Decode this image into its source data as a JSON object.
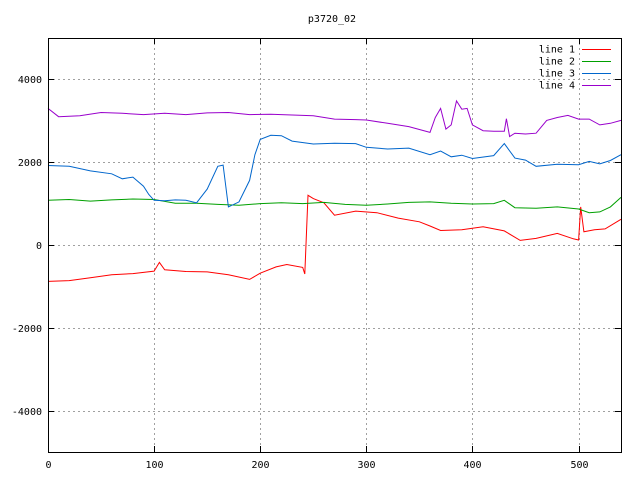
{
  "chart_data": {
    "type": "line",
    "title": "p3720_02",
    "xlabel": "",
    "ylabel": "",
    "xlim": [
      0,
      540
    ],
    "ylim": [
      -5000,
      5000
    ],
    "xticks": [
      0,
      100,
      200,
      300,
      400,
      500
    ],
    "yticks": [
      -4000,
      -2000,
      0,
      2000,
      4000
    ],
    "grid": true,
    "legend_position": "top-right",
    "series": [
      {
        "name": "line 1",
        "color": "#ff0000",
        "points": [
          [
            0,
            -880
          ],
          [
            20,
            -860
          ],
          [
            40,
            -790
          ],
          [
            60,
            -720
          ],
          [
            80,
            -690
          ],
          [
            100,
            -630
          ],
          [
            105,
            -420
          ],
          [
            110,
            -600
          ],
          [
            130,
            -640
          ],
          [
            150,
            -650
          ],
          [
            170,
            -720
          ],
          [
            190,
            -830
          ],
          [
            200,
            -680
          ],
          [
            215,
            -530
          ],
          [
            225,
            -470
          ],
          [
            240,
            -540
          ],
          [
            242,
            -700
          ],
          [
            245,
            1200
          ],
          [
            250,
            1120
          ],
          [
            260,
            1020
          ],
          [
            270,
            720
          ],
          [
            290,
            820
          ],
          [
            310,
            780
          ],
          [
            330,
            650
          ],
          [
            350,
            560
          ],
          [
            360,
            460
          ],
          [
            370,
            350
          ],
          [
            390,
            370
          ],
          [
            410,
            440
          ],
          [
            430,
            340
          ],
          [
            445,
            110
          ],
          [
            460,
            160
          ],
          [
            480,
            280
          ],
          [
            495,
            150
          ],
          [
            500,
            120
          ],
          [
            502,
            920
          ],
          [
            505,
            320
          ],
          [
            515,
            370
          ],
          [
            525,
            390
          ],
          [
            540,
            620
          ]
        ]
      },
      {
        "name": "line 2",
        "color": "#00a000",
        "points": [
          [
            0,
            1080
          ],
          [
            20,
            1100
          ],
          [
            40,
            1060
          ],
          [
            60,
            1090
          ],
          [
            80,
            1110
          ],
          [
            100,
            1100
          ],
          [
            120,
            1010
          ],
          [
            140,
            1010
          ],
          [
            160,
            980
          ],
          [
            180,
            960
          ],
          [
            200,
            1000
          ],
          [
            220,
            1020
          ],
          [
            240,
            1000
          ],
          [
            260,
            1030
          ],
          [
            280,
            980
          ],
          [
            300,
            960
          ],
          [
            320,
            990
          ],
          [
            340,
            1030
          ],
          [
            360,
            1040
          ],
          [
            380,
            1010
          ],
          [
            400,
            990
          ],
          [
            420,
            1000
          ],
          [
            430,
            1080
          ],
          [
            440,
            900
          ],
          [
            460,
            890
          ],
          [
            480,
            920
          ],
          [
            500,
            870
          ],
          [
            510,
            780
          ],
          [
            520,
            800
          ],
          [
            530,
            920
          ],
          [
            540,
            1150
          ]
        ]
      },
      {
        "name": "line 3",
        "color": "#0066cc",
        "points": [
          [
            0,
            1920
          ],
          [
            20,
            1900
          ],
          [
            40,
            1790
          ],
          [
            60,
            1720
          ],
          [
            70,
            1600
          ],
          [
            80,
            1640
          ],
          [
            90,
            1420
          ],
          [
            95,
            1220
          ],
          [
            100,
            1080
          ],
          [
            110,
            1070
          ],
          [
            120,
            1090
          ],
          [
            130,
            1080
          ],
          [
            140,
            1020
          ],
          [
            150,
            1350
          ],
          [
            160,
            1900
          ],
          [
            165,
            1930
          ],
          [
            170,
            920
          ],
          [
            180,
            1040
          ],
          [
            190,
            1560
          ],
          [
            195,
            2180
          ],
          [
            200,
            2550
          ],
          [
            210,
            2650
          ],
          [
            220,
            2640
          ],
          [
            230,
            2510
          ],
          [
            250,
            2440
          ],
          [
            270,
            2460
          ],
          [
            290,
            2450
          ],
          [
            300,
            2360
          ],
          [
            320,
            2320
          ],
          [
            340,
            2340
          ],
          [
            360,
            2180
          ],
          [
            370,
            2270
          ],
          [
            380,
            2130
          ],
          [
            390,
            2170
          ],
          [
            400,
            2090
          ],
          [
            420,
            2160
          ],
          [
            430,
            2450
          ],
          [
            440,
            2100
          ],
          [
            450,
            2050
          ],
          [
            460,
            1900
          ],
          [
            480,
            1950
          ],
          [
            500,
            1940
          ],
          [
            510,
            2020
          ],
          [
            520,
            1960
          ],
          [
            530,
            2040
          ],
          [
            540,
            2180
          ]
        ]
      },
      {
        "name": "line 4",
        "color": "#9900cc",
        "points": [
          [
            0,
            3300
          ],
          [
            10,
            3100
          ],
          [
            30,
            3120
          ],
          [
            50,
            3200
          ],
          [
            70,
            3180
          ],
          [
            90,
            3150
          ],
          [
            110,
            3180
          ],
          [
            130,
            3150
          ],
          [
            150,
            3190
          ],
          [
            170,
            3200
          ],
          [
            190,
            3150
          ],
          [
            210,
            3160
          ],
          [
            230,
            3140
          ],
          [
            250,
            3120
          ],
          [
            270,
            3040
          ],
          [
            290,
            3030
          ],
          [
            300,
            3020
          ],
          [
            320,
            2940
          ],
          [
            340,
            2860
          ],
          [
            350,
            2790
          ],
          [
            360,
            2720
          ],
          [
            365,
            3080
          ],
          [
            370,
            3300
          ],
          [
            375,
            2800
          ],
          [
            380,
            2900
          ],
          [
            385,
            3480
          ],
          [
            390,
            3280
          ],
          [
            395,
            3300
          ],
          [
            400,
            2900
          ],
          [
            410,
            2760
          ],
          [
            420,
            2750
          ],
          [
            430,
            2750
          ],
          [
            432,
            3050
          ],
          [
            435,
            2620
          ],
          [
            440,
            2700
          ],
          [
            450,
            2680
          ],
          [
            460,
            2700
          ],
          [
            470,
            3010
          ],
          [
            480,
            3080
          ],
          [
            490,
            3130
          ],
          [
            500,
            3040
          ],
          [
            510,
            3040
          ],
          [
            520,
            2900
          ],
          [
            530,
            2940
          ],
          [
            540,
            3010
          ]
        ]
      }
    ]
  }
}
